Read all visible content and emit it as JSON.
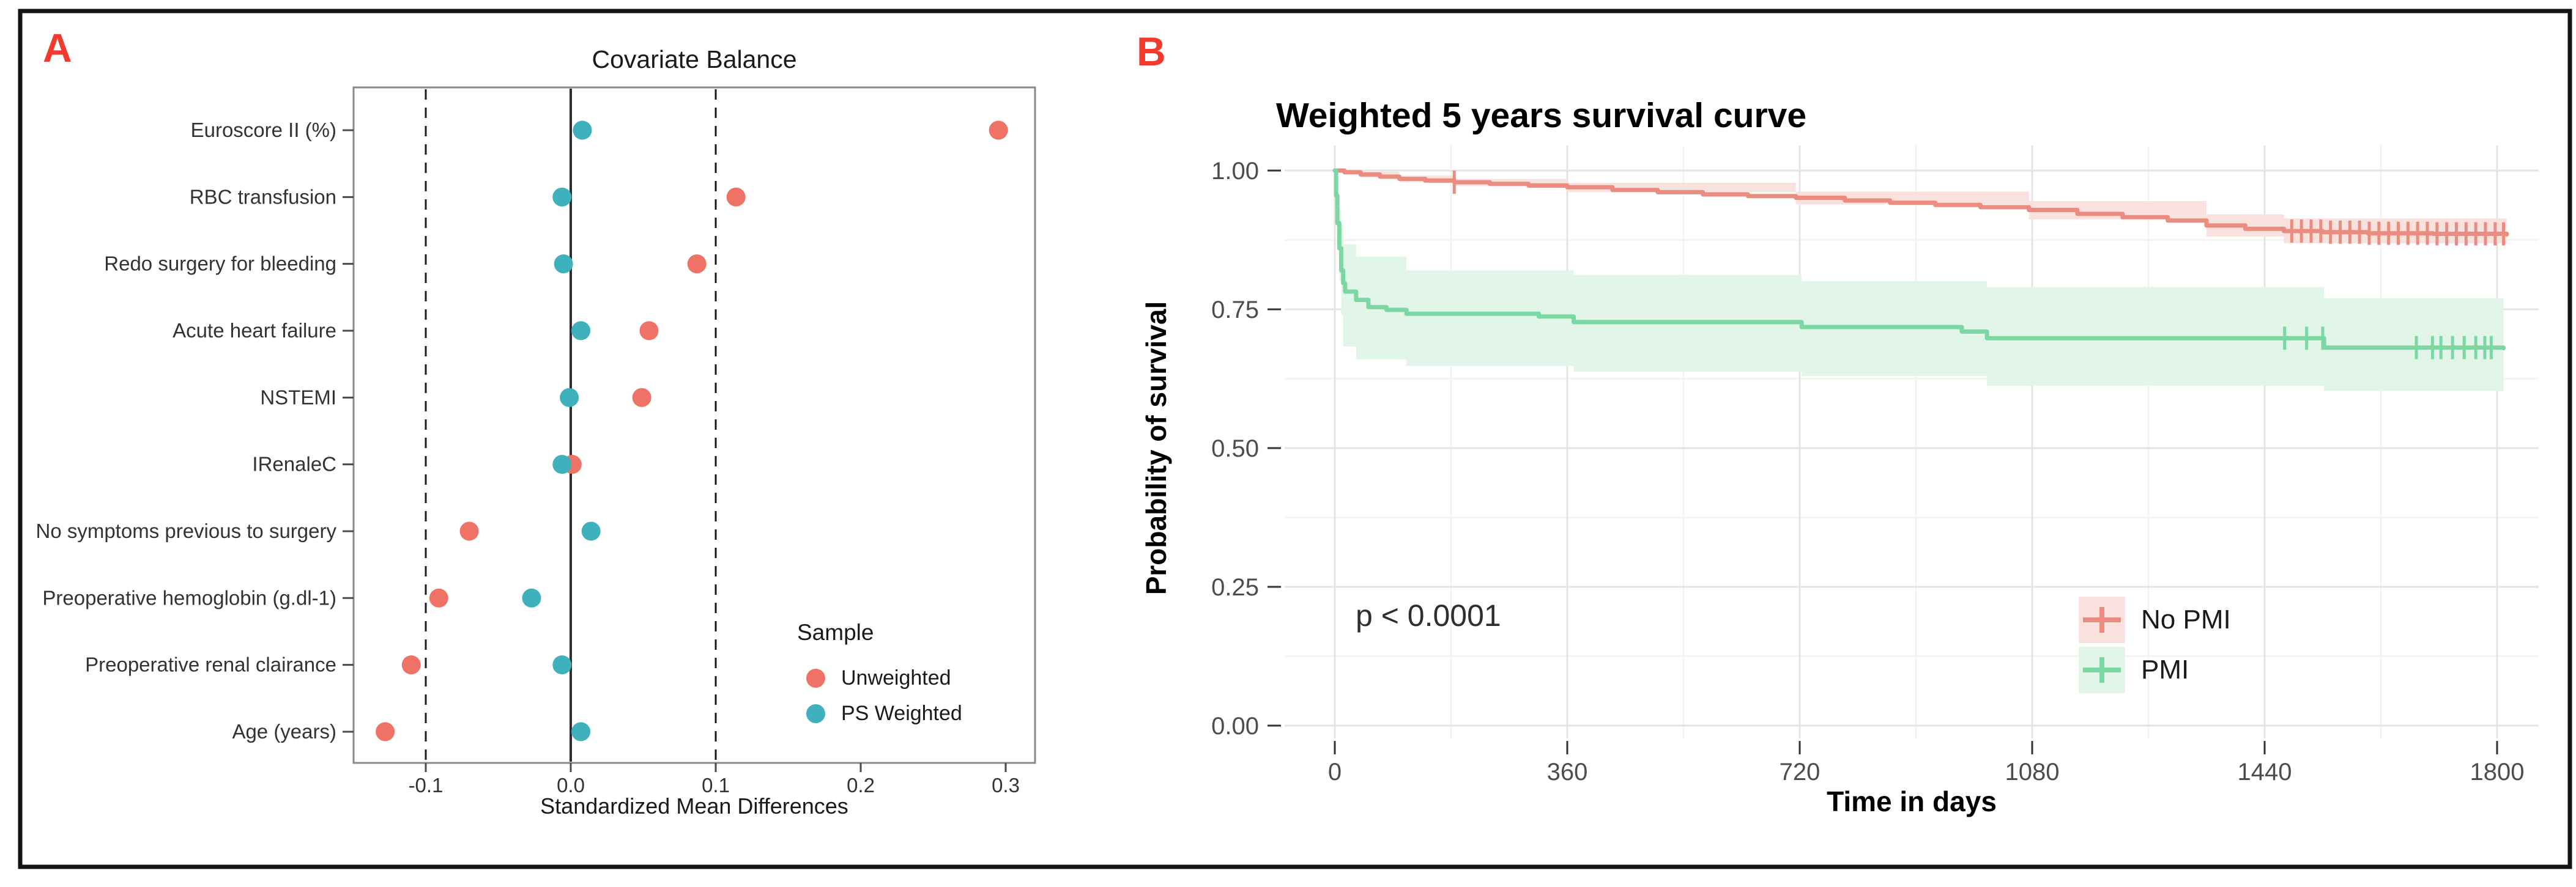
{
  "figure": {
    "panel_a_label": "A",
    "panel_b_label": "B",
    "accent_red": "#F23B2E"
  },
  "chart_data": [
    {
      "type": "scatter",
      "panel": "A",
      "title": "Covariate Balance",
      "xlabel": "Standardized Mean Differences",
      "categories": [
        "Euroscore II (%)",
        "RBC transfusion",
        "Redo surgery for bleeding",
        "Acute heart failure",
        "NSTEMI",
        "IRenaleC",
        "No symptoms previous to surgery",
        "Preoperative hemoglobin (g.dl-1)",
        "Preoperative renal clairance",
        "Age (years)"
      ],
      "x_ticks": [
        -0.1,
        0.0,
        0.1,
        0.2,
        0.3
      ],
      "x_tick_labels": [
        "-0.1",
        "0.0",
        "0.1",
        "0.2",
        "0.3"
      ],
      "xlim": [
        -0.15,
        0.32
      ],
      "reference_lines": {
        "solid_at": 0.0,
        "dashed_at": [
          -0.1,
          0.1
        ]
      },
      "grid": false,
      "legend": {
        "title": "Sample",
        "position": "inside-bottom-right"
      },
      "series": [
        {
          "name": "Unweighted",
          "color": "#EE7266",
          "values": [
            0.295,
            0.114,
            0.087,
            0.054,
            0.049,
            0.001,
            -0.07,
            -0.091,
            -0.11,
            -0.128
          ]
        },
        {
          "name": "PS Weighted",
          "color": "#3EB1BD",
          "values": [
            0.008,
            -0.006,
            -0.005,
            0.007,
            -0.001,
            -0.006,
            0.014,
            -0.027,
            -0.006,
            0.007
          ]
        }
      ]
    },
    {
      "type": "line",
      "panel": "B",
      "title": "Weighted 5 years survival curve",
      "xlabel": "Time in days",
      "ylabel": "Probability of survival",
      "annotation": "p < 0.0001",
      "x_ticks": [
        0,
        360,
        720,
        1080,
        1440,
        1800
      ],
      "x_minor_ticks": [
        180,
        540,
        900,
        1260,
        1620
      ],
      "y_ticks": [
        0.0,
        0.25,
        0.5,
        0.75,
        1.0
      ],
      "y_tick_labels": [
        "0.00",
        "0.25",
        "0.50",
        "0.75",
        "1.00"
      ],
      "y_minor_ticks": [
        0.125,
        0.375,
        0.625,
        0.875
      ],
      "xlim": [
        0,
        1815
      ],
      "ylim": [
        0,
        1
      ],
      "grid": true,
      "legend_position": "inside-bottom-right",
      "series": [
        {
          "name": "No PMI",
          "color": "#EB8C81",
          "band_color": "#F9E2DE",
          "steps": [
            [
              0,
              1.0
            ],
            [
              15,
              0.997
            ],
            [
              40,
              0.993
            ],
            [
              70,
              0.989
            ],
            [
              100,
              0.985
            ],
            [
              140,
              0.982
            ],
            [
              185,
              0.979
            ],
            [
              240,
              0.976
            ],
            [
              300,
              0.973
            ],
            [
              360,
              0.97
            ],
            [
              430,
              0.965
            ],
            [
              500,
              0.961
            ],
            [
              570,
              0.957
            ],
            [
              640,
              0.954
            ],
            [
              714,
              0.951
            ],
            [
              790,
              0.946
            ],
            [
              860,
              0.942
            ],
            [
              930,
              0.938
            ],
            [
              1000,
              0.934
            ],
            [
              1075,
              0.929
            ],
            [
              1150,
              0.922
            ],
            [
              1220,
              0.916
            ],
            [
              1290,
              0.91
            ],
            [
              1350,
              0.901
            ],
            [
              1410,
              0.895
            ],
            [
              1470,
              0.891
            ],
            [
              1530,
              0.889
            ],
            [
              1600,
              0.887
            ],
            [
              1700,
              0.886
            ],
            [
              1815,
              0.885
            ]
          ],
          "band_upper": [
            [
              0,
              1.0
            ],
            [
              40,
              0.998
            ],
            [
              100,
              0.991
            ],
            [
              185,
              0.985
            ],
            [
              360,
              0.978
            ],
            [
              714,
              0.962
            ],
            [
              1075,
              0.945
            ],
            [
              1350,
              0.921
            ],
            [
              1470,
              0.914
            ],
            [
              1815,
              0.911
            ]
          ],
          "band_lower": [
            [
              0,
              1.0
            ],
            [
              15,
              0.994
            ],
            [
              40,
              0.988
            ],
            [
              100,
              0.979
            ],
            [
              185,
              0.972
            ],
            [
              360,
              0.961
            ],
            [
              714,
              0.939
            ],
            [
              1075,
              0.912
            ],
            [
              1350,
              0.881
            ],
            [
              1470,
              0.869
            ],
            [
              1815,
              0.859
            ]
          ],
          "censor_days": [
            185,
            1482,
            1497,
            1512,
            1527,
            1542,
            1557,
            1572,
            1587,
            1602,
            1617,
            1632,
            1647,
            1662,
            1677,
            1692,
            1707,
            1722,
            1737,
            1752,
            1767,
            1782,
            1797,
            1810
          ]
        },
        {
          "name": "PMI",
          "color": "#7DD7A2",
          "band_color": "#E1F5E9",
          "steps": [
            [
              0,
              1.0
            ],
            [
              2,
              0.955
            ],
            [
              4,
              0.905
            ],
            [
              7,
              0.86
            ],
            [
              10,
              0.82
            ],
            [
              13,
              0.797
            ],
            [
              16,
              0.782
            ],
            [
              33,
              0.767
            ],
            [
              52,
              0.754
            ],
            [
              80,
              0.749
            ],
            [
              111,
              0.742
            ],
            [
              316,
              0.737
            ],
            [
              370,
              0.727
            ],
            [
              723,
              0.718
            ],
            [
              971,
              0.71
            ],
            [
              1010,
              0.698
            ],
            [
              1532,
              0.681
            ],
            [
              1810,
              0.68
            ]
          ],
          "band_upper": [
            [
              7,
              0.93
            ],
            [
              10,
              0.895
            ],
            [
              13,
              0.867
            ],
            [
              33,
              0.845
            ],
            [
              111,
              0.82
            ],
            [
              370,
              0.812
            ],
            [
              723,
              0.801
            ],
            [
              1010,
              0.79
            ],
            [
              1532,
              0.77
            ],
            [
              1810,
              0.77
            ]
          ],
          "band_lower": [
            [
              7,
              0.8
            ],
            [
              10,
              0.74
            ],
            [
              13,
              0.683
            ],
            [
              33,
              0.66
            ],
            [
              111,
              0.648
            ],
            [
              370,
              0.638
            ],
            [
              723,
              0.63
            ],
            [
              1010,
              0.612
            ],
            [
              1532,
              0.603
            ],
            [
              1810,
              0.603
            ]
          ],
          "censor_days": [
            1471,
            1505,
            1530,
            1675,
            1700,
            1713,
            1731,
            1749,
            1767,
            1781,
            1791
          ]
        }
      ]
    }
  ]
}
